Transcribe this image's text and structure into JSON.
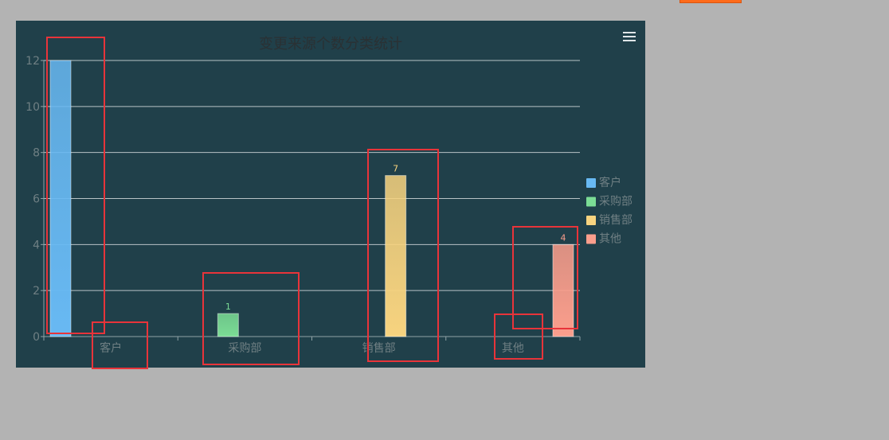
{
  "chart_data": {
    "type": "bar",
    "title": "变更来源个数分类统计",
    "categories": [
      "客户",
      "采购部",
      "销售部",
      "其他"
    ],
    "series": [
      {
        "name": "客户",
        "values": [
          12,
          null,
          null,
          null
        ],
        "color": "#68b9f3"
      },
      {
        "name": "采购部",
        "values": [
          null,
          1,
          null,
          null
        ],
        "color": "#7bdc95"
      },
      {
        "name": "销售部",
        "values": [
          null,
          null,
          7,
          null
        ],
        "color": "#f7d37f"
      },
      {
        "name": "其他",
        "values": [
          null,
          null,
          null,
          4
        ],
        "color": "#fb9e8c"
      }
    ],
    "data_labels": [
      null,
      "1",
      "7",
      "4"
    ],
    "ylim": [
      0,
      12
    ],
    "yticks": [
      0,
      2,
      4,
      6,
      8,
      10,
      12
    ],
    "grid": true,
    "legend": "right",
    "menu_icon": "hamburger-menu-icon"
  },
  "colors": {
    "panel_bg": "#20404a",
    "axis": "#8fa2a6",
    "grid": "#b8c3c6",
    "text": "#6f7f83",
    "annotation": "#e8343a",
    "page_bg": "#b3b3b3",
    "top_button": "#ff6b1a"
  }
}
